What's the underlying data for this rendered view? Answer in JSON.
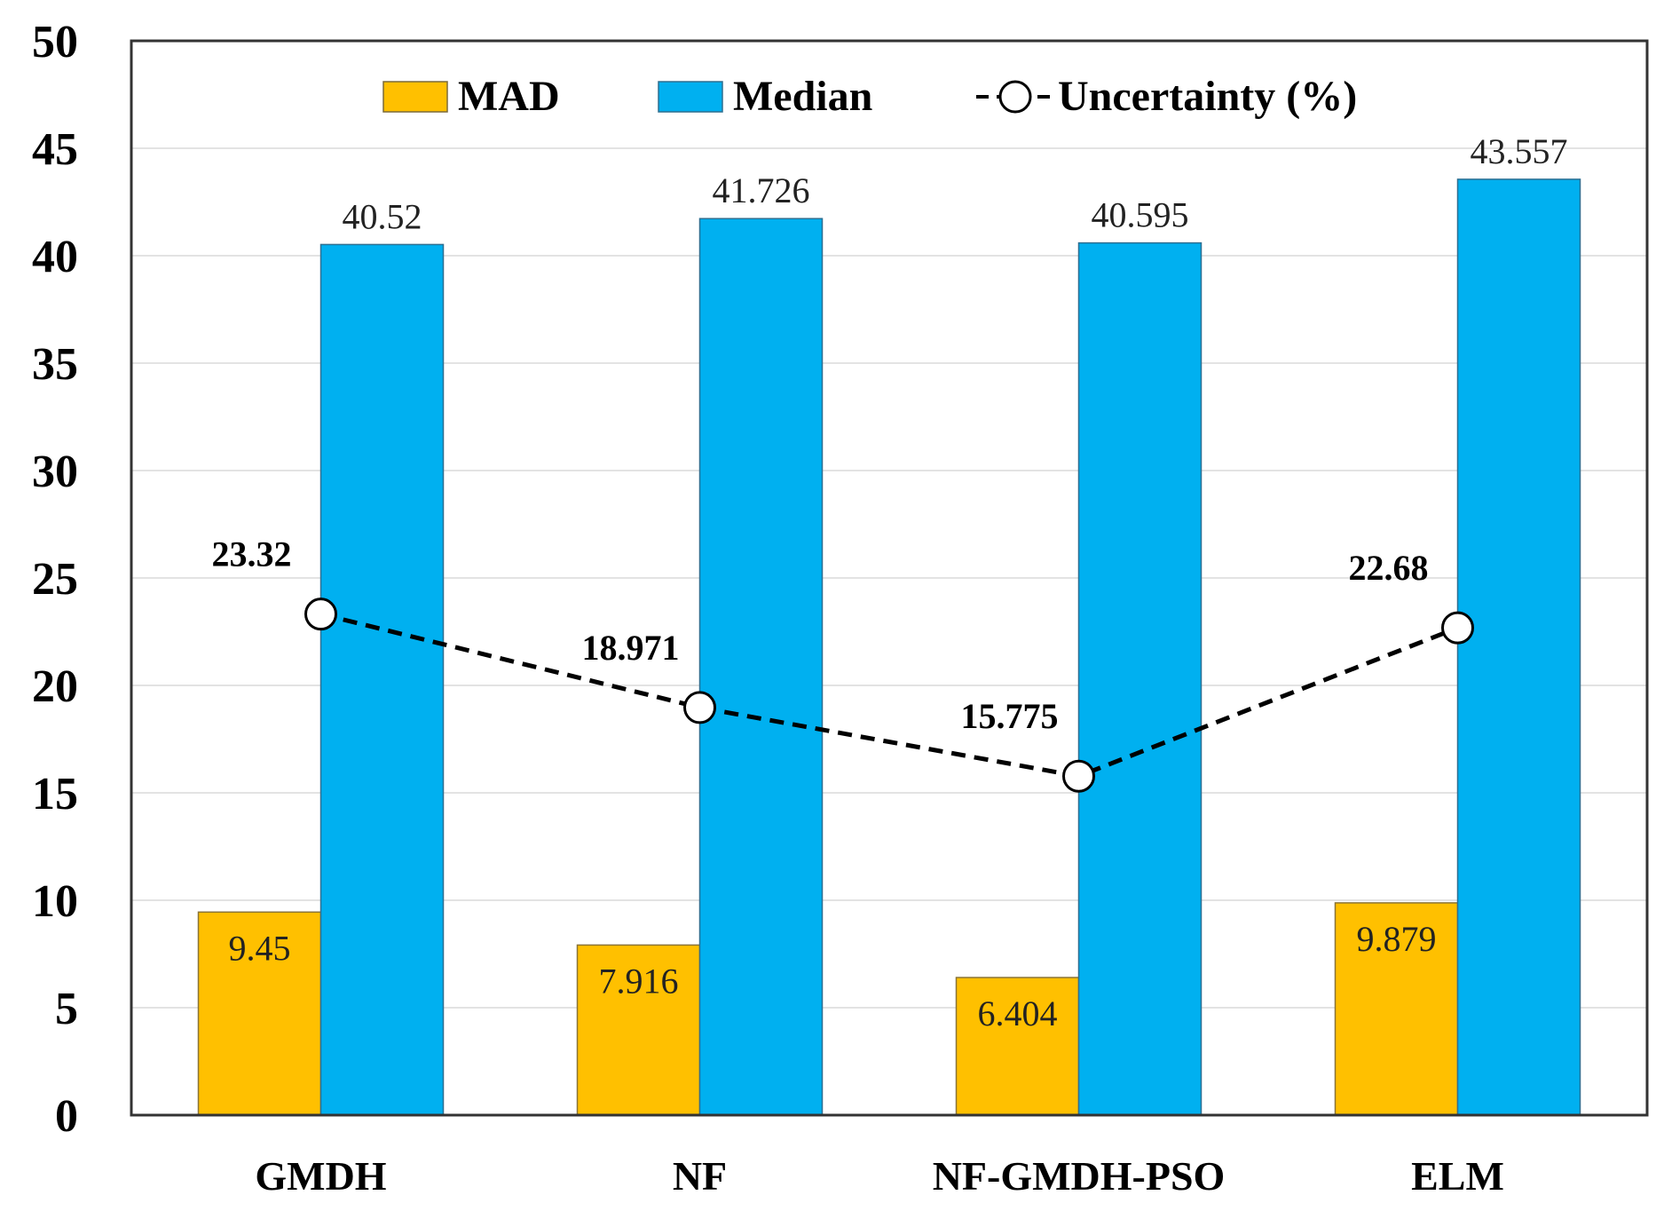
{
  "chart_data": {
    "type": "bar",
    "categories": [
      "GMDH",
      "NF",
      "NF-GMDH-PSO",
      "ELM"
    ],
    "series": [
      {
        "name": "MAD",
        "kind": "bar",
        "color": "#FFC000",
        "values": [
          9.45,
          7.916,
          6.404,
          9.879
        ],
        "labels": [
          "9.45",
          "7.916",
          "6.404",
          "9.879"
        ]
      },
      {
        "name": "Median",
        "kind": "bar",
        "color": "#00B0F0",
        "values": [
          40.52,
          41.726,
          40.595,
          43.557
        ],
        "labels": [
          "40.52",
          "41.726",
          "40.595",
          "43.557"
        ]
      },
      {
        "name": "Uncertainty (%)",
        "kind": "line",
        "color": "#000000",
        "values": [
          23.32,
          18.971,
          15.775,
          22.68
        ],
        "labels": [
          "23.32",
          "18.971",
          "15.775",
          "22.68"
        ]
      }
    ],
    "ylim": [
      0,
      50
    ],
    "yticks": [
      "0",
      "5",
      "10",
      "15",
      "20",
      "25",
      "30",
      "35",
      "40",
      "45",
      "50"
    ],
    "grid": true,
    "legend": "top-center",
    "title": "",
    "xlabel": "",
    "ylabel": ""
  }
}
